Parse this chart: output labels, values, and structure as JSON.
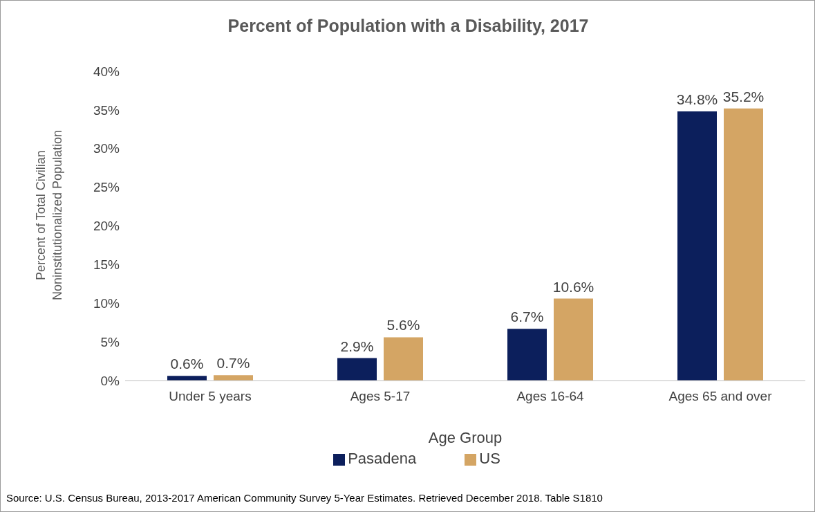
{
  "chart_data": {
    "type": "bar",
    "title": "Percent of Population with a Disability, 2017",
    "xlabel": "Age Group",
    "ylabel": "Percent of Total Civilian Noninstitutionalized Population",
    "categories": [
      "Under 5 years",
      "Ages 5-17",
      "Ages 16-64",
      "Ages 65 and over"
    ],
    "series": [
      {
        "name": "Pasadena",
        "color": "#0c1f5c",
        "values": [
          0.6,
          2.9,
          6.7,
          34.8
        ],
        "value_labels": [
          "0.6%",
          "2.9%",
          "6.7%",
          "34.8%"
        ]
      },
      {
        "name": "US",
        "color": "#d4a564",
        "values": [
          0.7,
          5.6,
          10.6,
          35.2
        ],
        "value_labels": [
          "0.7%",
          "5.6%",
          "10.6%",
          "35.2%"
        ]
      }
    ],
    "ylim": [
      0,
      40
    ],
    "yticks": [
      {
        "value": 0,
        "label": "0%"
      },
      {
        "value": 5,
        "label": "5%"
      },
      {
        "value": 10,
        "label": "10%"
      },
      {
        "value": 15,
        "label": "15%"
      },
      {
        "value": 20,
        "label": "20%"
      },
      {
        "value": 25,
        "label": "25%"
      },
      {
        "value": 30,
        "label": "30%"
      },
      {
        "value": 35,
        "label": "35%"
      },
      {
        "value": 40,
        "label": "40%"
      }
    ],
    "legend": "bottom",
    "annotations": [
      "Source: U.S. Census Bureau, 2013-2017 American Community Survey 5-Year Estimates. Retrieved December 2018. Table S1810"
    ]
  }
}
